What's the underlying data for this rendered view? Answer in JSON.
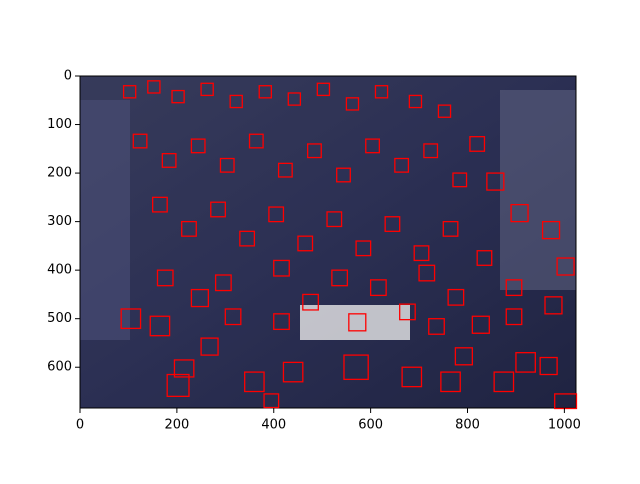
{
  "chart_data": {
    "type": "image",
    "xlim": [
      0,
      1024
    ],
    "ylim": [
      684,
      0
    ],
    "xticks": [
      0,
      200,
      400,
      600,
      800,
      1000
    ],
    "yticks": [
      0,
      100,
      200,
      300,
      400,
      500,
      600
    ],
    "box_color": "#ff0000",
    "boxes": [
      [
        85,
        480,
        40,
        40
      ],
      [
        145,
        495,
        40,
        40
      ],
      [
        230,
        440,
        35,
        35
      ],
      [
        195,
        585,
        40,
        35
      ],
      [
        180,
        615,
        45,
        45
      ],
      [
        340,
        610,
        40,
        40
      ],
      [
        380,
        655,
        30,
        28
      ],
      [
        420,
        590,
        40,
        40
      ],
      [
        545,
        575,
        50,
        50
      ],
      [
        555,
        490,
        35,
        35
      ],
      [
        665,
        600,
        40,
        40
      ],
      [
        745,
        610,
        40,
        40
      ],
      [
        775,
        560,
        35,
        35
      ],
      [
        810,
        495,
        35,
        35
      ],
      [
        855,
        610,
        40,
        40
      ],
      [
        900,
        570,
        40,
        40
      ],
      [
        950,
        580,
        35,
        35
      ],
      [
        980,
        655,
        45,
        30
      ],
      [
        960,
        455,
        35,
        35
      ],
      [
        985,
        375,
        35,
        35
      ],
      [
        890,
        265,
        35,
        35
      ],
      [
        955,
        300,
        35,
        35
      ],
      [
        840,
        200,
        35,
        35
      ],
      [
        805,
        125,
        30,
        30
      ],
      [
        90,
        20,
        25,
        25
      ],
      [
        140,
        10,
        25,
        25
      ],
      [
        190,
        30,
        25,
        25
      ],
      [
        250,
        15,
        25,
        25
      ],
      [
        310,
        40,
        25,
        25
      ],
      [
        370,
        20,
        25,
        25
      ],
      [
        430,
        35,
        25,
        25
      ],
      [
        490,
        15,
        25,
        25
      ],
      [
        550,
        45,
        25,
        25
      ],
      [
        610,
        20,
        25,
        25
      ],
      [
        680,
        40,
        25,
        25
      ],
      [
        740,
        60,
        25,
        25
      ],
      [
        110,
        120,
        28,
        28
      ],
      [
        170,
        160,
        28,
        28
      ],
      [
        230,
        130,
        28,
        28
      ],
      [
        290,
        170,
        28,
        28
      ],
      [
        350,
        120,
        28,
        28
      ],
      [
        410,
        180,
        28,
        28
      ],
      [
        470,
        140,
        28,
        28
      ],
      [
        530,
        190,
        28,
        28
      ],
      [
        590,
        130,
        28,
        28
      ],
      [
        650,
        170,
        28,
        28
      ],
      [
        710,
        140,
        28,
        28
      ],
      [
        770,
        200,
        28,
        28
      ],
      [
        150,
        250,
        30,
        30
      ],
      [
        210,
        300,
        30,
        30
      ],
      [
        270,
        260,
        30,
        30
      ],
      [
        330,
        320,
        30,
        30
      ],
      [
        390,
        270,
        30,
        30
      ],
      [
        450,
        330,
        30,
        30
      ],
      [
        510,
        280,
        30,
        30
      ],
      [
        570,
        340,
        30,
        30
      ],
      [
        630,
        290,
        30,
        30
      ],
      [
        690,
        350,
        30,
        30
      ],
      [
        750,
        300,
        30,
        30
      ],
      [
        820,
        360,
        30,
        30
      ],
      [
        160,
        400,
        32,
        32
      ],
      [
        280,
        410,
        32,
        32
      ],
      [
        400,
        380,
        32,
        32
      ],
      [
        460,
        450,
        32,
        32
      ],
      [
        520,
        400,
        32,
        32
      ],
      [
        600,
        420,
        32,
        32
      ],
      [
        700,
        390,
        32,
        32
      ],
      [
        760,
        440,
        32,
        32
      ],
      [
        880,
        420,
        32,
        32
      ],
      [
        300,
        480,
        32,
        32
      ],
      [
        400,
        490,
        32,
        32
      ],
      [
        660,
        470,
        32,
        32
      ],
      [
        720,
        500,
        32,
        32
      ],
      [
        880,
        480,
        32,
        32
      ],
      [
        250,
        540,
        35,
        35
      ]
    ]
  }
}
